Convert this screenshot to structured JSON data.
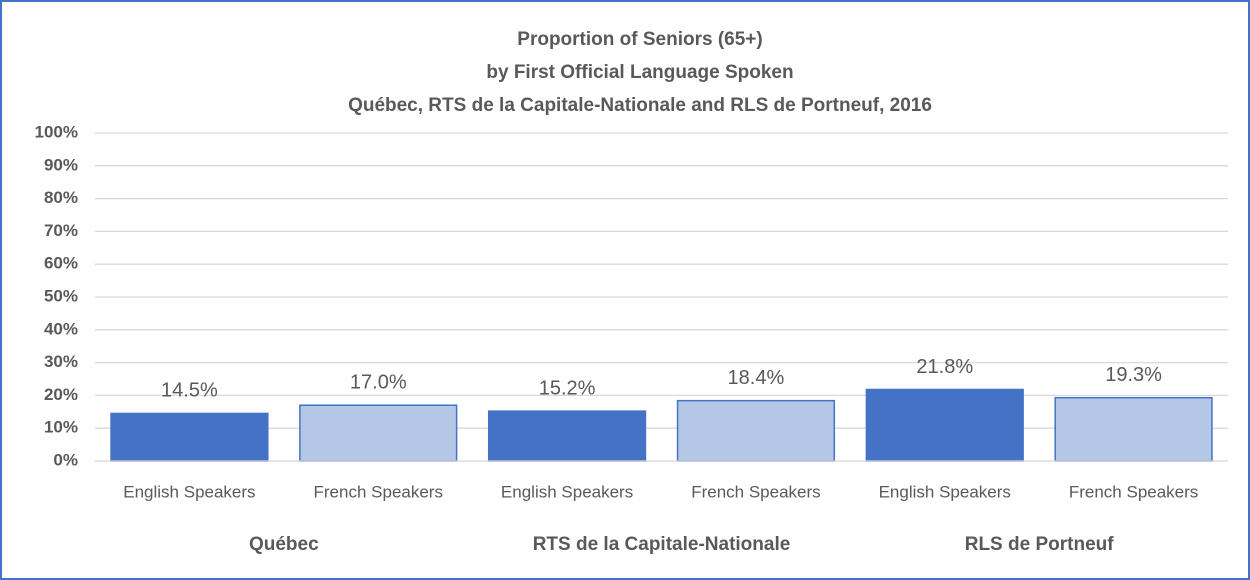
{
  "chart_data": {
    "type": "bar",
    "title": [
      "Proportion of Seniors (65+)",
      "by First Official Language Spoken",
      "Québec, RTS de la Capitale-Nationale and RLS de Portneuf, 2016"
    ],
    "groups": [
      {
        "name": "Québec",
        "categories": [
          "English Speakers",
          "French Speakers"
        ]
      },
      {
        "name": "RTS de la Capitale-Nationale",
        "categories": [
          "English Speakers",
          "French Speakers"
        ]
      },
      {
        "name": "RLS de Portneuf",
        "categories": [
          "English Speakers",
          "French Speakers"
        ]
      }
    ],
    "values": [
      14.5,
      17.0,
      15.2,
      18.4,
      21.8,
      19.3
    ],
    "value_labels": [
      "14.5%",
      "17.0%",
      "15.2%",
      "18.4%",
      "21.8%",
      "19.3%"
    ],
    "colors": [
      "#4472c4",
      "#b4c7e7",
      "#4472c4",
      "#b4c7e7",
      "#4472c4",
      "#b4c7e7"
    ],
    "edgecolor": "#4472c4",
    "ylim": [
      0,
      100
    ],
    "yticks": [
      {
        "value": 0,
        "label": "0%"
      },
      {
        "value": 10,
        "label": "10%"
      },
      {
        "value": 20,
        "label": "20%"
      },
      {
        "value": 30,
        "label": "30%"
      },
      {
        "value": 40,
        "label": "40%"
      },
      {
        "value": 50,
        "label": "50%"
      },
      {
        "value": 60,
        "label": "60%"
      },
      {
        "value": 70,
        "label": "70%"
      },
      {
        "value": 80,
        "label": "80%"
      },
      {
        "value": 90,
        "label": "90%"
      },
      {
        "value": 100,
        "label": "100%"
      }
    ],
    "grid": true
  }
}
